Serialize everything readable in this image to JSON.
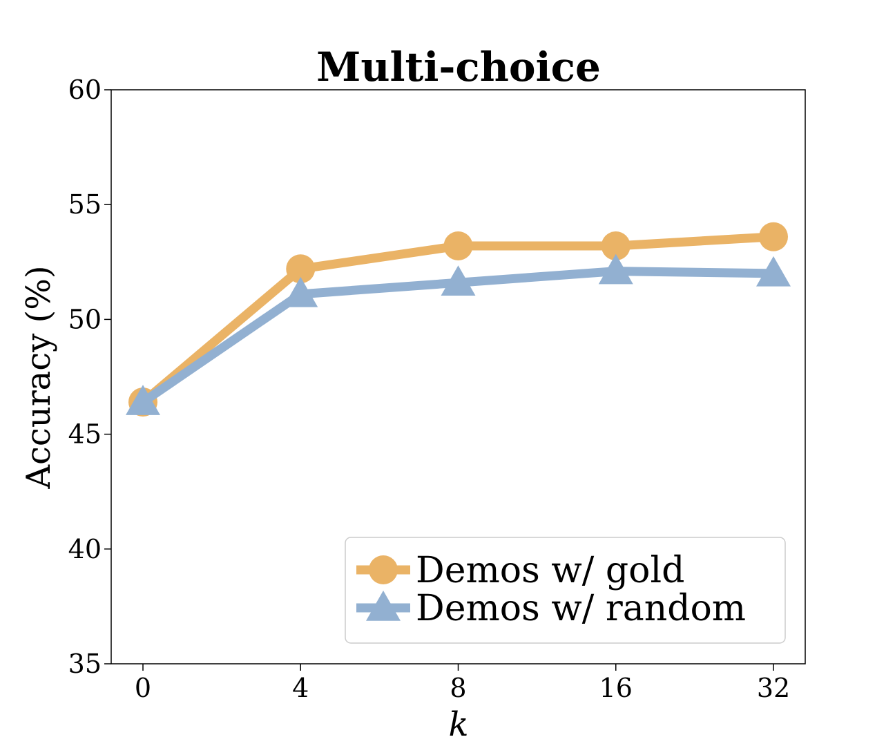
{
  "chart_data": {
    "type": "line",
    "title": "Multi-choice",
    "xlabel": "k",
    "ylabel": "Accuracy (%)",
    "categories": [
      "0",
      "4",
      "8",
      "16",
      "32"
    ],
    "ylim": [
      35,
      60
    ],
    "yticks": [
      "35",
      "40",
      "45",
      "50",
      "55",
      "60"
    ],
    "grid": false,
    "legend_position": "bottom-right",
    "series": [
      {
        "name": "Demos w/ gold",
        "values": [
          46.4,
          52.2,
          53.2,
          53.2,
          53.6
        ],
        "color": "#EAB366",
        "marker": "circle"
      },
      {
        "name": "Demos w/ random",
        "values": [
          46.4,
          51.1,
          51.6,
          52.1,
          52.0
        ],
        "color": "#92B0D1",
        "marker": "triangle"
      }
    ]
  }
}
